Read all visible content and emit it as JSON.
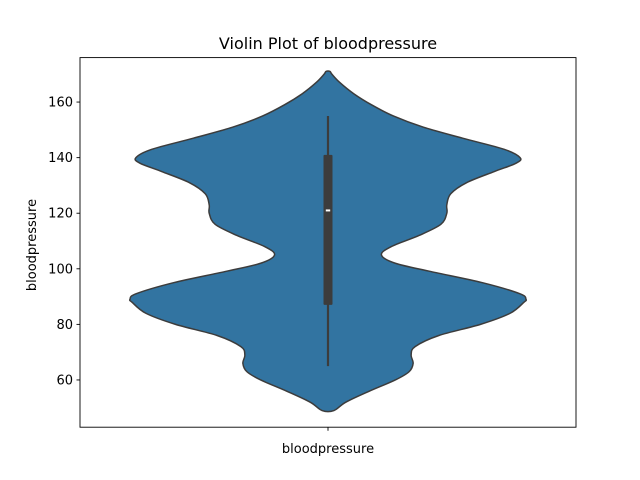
{
  "chart_data": {
    "type": "violin",
    "title": "Violin Plot of bloodpressure",
    "xlabel": "",
    "ylabel": "bloodpressure",
    "categories": [
      "bloodpressure"
    ],
    "ylim": [
      43,
      176
    ],
    "yticks": [
      60,
      80,
      100,
      120,
      140,
      160
    ],
    "grid": false,
    "colors": {
      "violin": "#3274a1",
      "edge": "#3c3c3c",
      "box": "#3c3c3c",
      "median": "#ffffff"
    },
    "series": [
      {
        "density_profile": [
          {
            "y": 49,
            "w": 0.03
          },
          {
            "y": 52,
            "w": 0.09
          },
          {
            "y": 56,
            "w": 0.21
          },
          {
            "y": 60,
            "w": 0.34
          },
          {
            "y": 63,
            "w": 0.41
          },
          {
            "y": 66,
            "w": 0.43
          },
          {
            "y": 69,
            "w": 0.42
          },
          {
            "y": 72,
            "w": 0.44
          },
          {
            "y": 76,
            "w": 0.56
          },
          {
            "y": 80,
            "w": 0.77
          },
          {
            "y": 84,
            "w": 0.92
          },
          {
            "y": 88,
            "w": 0.99
          },
          {
            "y": 89,
            "w": 1.0
          },
          {
            "y": 91,
            "w": 0.97
          },
          {
            "y": 95,
            "w": 0.78
          },
          {
            "y": 99,
            "w": 0.52
          },
          {
            "y": 102,
            "w": 0.34
          },
          {
            "y": 105,
            "w": 0.27
          },
          {
            "y": 108,
            "w": 0.32
          },
          {
            "y": 112,
            "w": 0.46
          },
          {
            "y": 116,
            "w": 0.57
          },
          {
            "y": 120,
            "w": 0.6
          },
          {
            "y": 123,
            "w": 0.6
          },
          {
            "y": 127,
            "w": 0.62
          },
          {
            "y": 131,
            "w": 0.7
          },
          {
            "y": 135,
            "w": 0.84
          },
          {
            "y": 138,
            "w": 0.95
          },
          {
            "y": 140,
            "w": 0.97
          },
          {
            "y": 143,
            "w": 0.89
          },
          {
            "y": 147,
            "w": 0.68
          },
          {
            "y": 151,
            "w": 0.48
          },
          {
            "y": 155,
            "w": 0.33
          },
          {
            "y": 159,
            "w": 0.22
          },
          {
            "y": 163,
            "w": 0.13
          },
          {
            "y": 167,
            "w": 0.06
          },
          {
            "y": 170,
            "w": 0.02
          },
          {
            "y": 171,
            "w": 0.01
          }
        ],
        "min": 65,
        "q1": 87,
        "median": 121,
        "q3": 141,
        "max": 155
      }
    ]
  }
}
